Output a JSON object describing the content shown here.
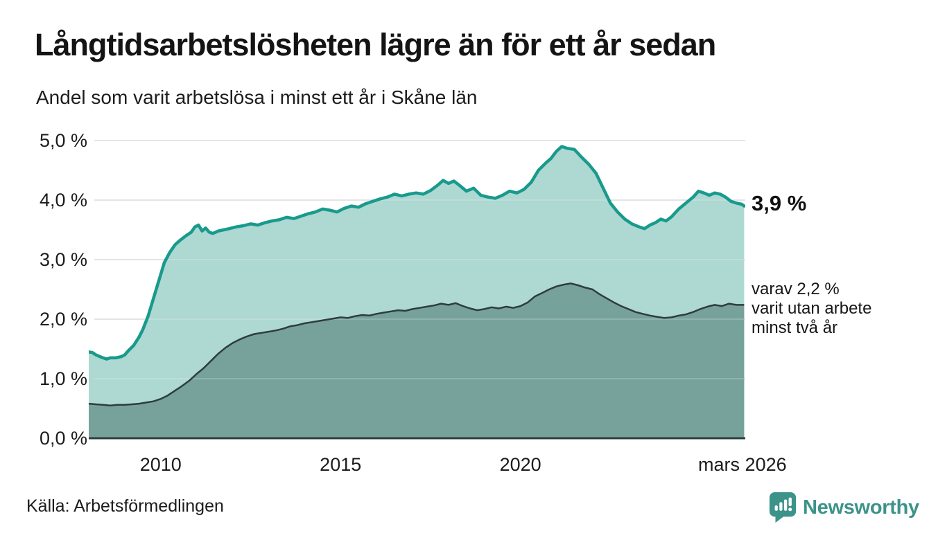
{
  "header": {
    "title": "Långtidsarbetslösheten lägre än för ett år sedan",
    "subtitle": "Andel som varit arbetslösa i minst ett år i Skåne län"
  },
  "chart_data": {
    "type": "area",
    "title": "Långtidsarbetslösheten lägre än för ett år sedan",
    "subtitle": "Andel som varit arbetslösa i minst ett år i Skåne län",
    "unit": "%",
    "xlim": [
      2008.0,
      2026.25
    ],
    "ylim": [
      0,
      5
    ],
    "grid": true,
    "y_ticks": [
      {
        "value": 5,
        "label": "5,0 %"
      },
      {
        "value": 4,
        "label": "4,0 %"
      },
      {
        "value": 3,
        "label": "3,0 %"
      },
      {
        "value": 2,
        "label": "2,0 %"
      },
      {
        "value": 1,
        "label": "1,0 %"
      },
      {
        "value": 0,
        "label": "0,0 %"
      }
    ],
    "x_ticks": [
      {
        "value": 2010,
        "label": "2010"
      },
      {
        "value": 2015,
        "label": "2015"
      },
      {
        "value": 2020,
        "label": "2020"
      },
      {
        "value": 2026.17,
        "label": "mars 2026"
      }
    ],
    "series": [
      {
        "name": "Andel arbetslösa minst ett år",
        "line_color": "#189a8c",
        "fill_color": "#aad6d0",
        "line_width": 4.5,
        "end_value": 3.9,
        "points": [
          [
            2008.0,
            1.45
          ],
          [
            2008.1,
            1.44
          ],
          [
            2008.2,
            1.4
          ],
          [
            2008.35,
            1.36
          ],
          [
            2008.5,
            1.33
          ],
          [
            2008.6,
            1.35
          ],
          [
            2008.75,
            1.35
          ],
          [
            2008.9,
            1.37
          ],
          [
            2009.0,
            1.4
          ],
          [
            2009.1,
            1.47
          ],
          [
            2009.25,
            1.56
          ],
          [
            2009.4,
            1.7
          ],
          [
            2009.5,
            1.82
          ],
          [
            2009.65,
            2.05
          ],
          [
            2009.8,
            2.35
          ],
          [
            2009.95,
            2.65
          ],
          [
            2010.1,
            2.95
          ],
          [
            2010.25,
            3.12
          ],
          [
            2010.4,
            3.25
          ],
          [
            2010.55,
            3.33
          ],
          [
            2010.7,
            3.4
          ],
          [
            2010.85,
            3.46
          ],
          [
            2010.95,
            3.55
          ],
          [
            2011.05,
            3.58
          ],
          [
            2011.15,
            3.48
          ],
          [
            2011.25,
            3.53
          ],
          [
            2011.35,
            3.46
          ],
          [
            2011.45,
            3.44
          ],
          [
            2011.6,
            3.48
          ],
          [
            2011.75,
            3.5
          ],
          [
            2011.9,
            3.52
          ],
          [
            2012.1,
            3.55
          ],
          [
            2012.3,
            3.57
          ],
          [
            2012.5,
            3.6
          ],
          [
            2012.7,
            3.58
          ],
          [
            2012.9,
            3.62
          ],
          [
            2013.1,
            3.65
          ],
          [
            2013.3,
            3.67
          ],
          [
            2013.5,
            3.71
          ],
          [
            2013.7,
            3.69
          ],
          [
            2013.9,
            3.73
          ],
          [
            2014.1,
            3.77
          ],
          [
            2014.3,
            3.8
          ],
          [
            2014.5,
            3.85
          ],
          [
            2014.7,
            3.83
          ],
          [
            2014.9,
            3.8
          ],
          [
            2015.1,
            3.86
          ],
          [
            2015.3,
            3.9
          ],
          [
            2015.5,
            3.88
          ],
          [
            2015.7,
            3.94
          ],
          [
            2015.9,
            3.98
          ],
          [
            2016.1,
            4.02
          ],
          [
            2016.3,
            4.05
          ],
          [
            2016.5,
            4.1
          ],
          [
            2016.7,
            4.07
          ],
          [
            2016.9,
            4.1
          ],
          [
            2017.1,
            4.12
          ],
          [
            2017.3,
            4.1
          ],
          [
            2017.5,
            4.16
          ],
          [
            2017.7,
            4.25
          ],
          [
            2017.85,
            4.33
          ],
          [
            2018.0,
            4.28
          ],
          [
            2018.15,
            4.32
          ],
          [
            2018.3,
            4.25
          ],
          [
            2018.5,
            4.15
          ],
          [
            2018.7,
            4.2
          ],
          [
            2018.9,
            4.08
          ],
          [
            2019.1,
            4.05
          ],
          [
            2019.3,
            4.03
          ],
          [
            2019.5,
            4.08
          ],
          [
            2019.7,
            4.15
          ],
          [
            2019.9,
            4.12
          ],
          [
            2020.1,
            4.18
          ],
          [
            2020.3,
            4.3
          ],
          [
            2020.5,
            4.5
          ],
          [
            2020.7,
            4.62
          ],
          [
            2020.85,
            4.7
          ],
          [
            2021.0,
            4.82
          ],
          [
            2021.15,
            4.9
          ],
          [
            2021.3,
            4.87
          ],
          [
            2021.5,
            4.85
          ],
          [
            2021.7,
            4.72
          ],
          [
            2021.9,
            4.6
          ],
          [
            2022.1,
            4.45
          ],
          [
            2022.3,
            4.2
          ],
          [
            2022.5,
            3.95
          ],
          [
            2022.7,
            3.8
          ],
          [
            2022.9,
            3.68
          ],
          [
            2023.1,
            3.6
          ],
          [
            2023.3,
            3.55
          ],
          [
            2023.45,
            3.52
          ],
          [
            2023.6,
            3.58
          ],
          [
            2023.75,
            3.62
          ],
          [
            2023.9,
            3.68
          ],
          [
            2024.05,
            3.65
          ],
          [
            2024.2,
            3.72
          ],
          [
            2024.4,
            3.85
          ],
          [
            2024.6,
            3.95
          ],
          [
            2024.8,
            4.05
          ],
          [
            2024.95,
            4.15
          ],
          [
            2025.1,
            4.12
          ],
          [
            2025.25,
            4.08
          ],
          [
            2025.4,
            4.12
          ],
          [
            2025.55,
            4.1
          ],
          [
            2025.7,
            4.05
          ],
          [
            2025.85,
            3.98
          ],
          [
            2026.0,
            3.95
          ],
          [
            2026.15,
            3.93
          ],
          [
            2026.22,
            3.9
          ]
        ]
      },
      {
        "name": "Varav utan arbete minst två år",
        "line_color": "#2e3d3b",
        "fill_color": "#77a29c",
        "line_width": 2.5,
        "end_value": 2.2,
        "points": [
          [
            2008.0,
            0.58
          ],
          [
            2008.2,
            0.57
          ],
          [
            2008.4,
            0.56
          ],
          [
            2008.6,
            0.55
          ],
          [
            2008.8,
            0.56
          ],
          [
            2009.0,
            0.56
          ],
          [
            2009.2,
            0.57
          ],
          [
            2009.4,
            0.58
          ],
          [
            2009.6,
            0.6
          ],
          [
            2009.8,
            0.62
          ],
          [
            2010.0,
            0.66
          ],
          [
            2010.2,
            0.72
          ],
          [
            2010.4,
            0.8
          ],
          [
            2010.6,
            0.88
          ],
          [
            2010.8,
            0.97
          ],
          [
            2011.0,
            1.08
          ],
          [
            2011.2,
            1.18
          ],
          [
            2011.4,
            1.3
          ],
          [
            2011.6,
            1.42
          ],
          [
            2011.8,
            1.52
          ],
          [
            2012.0,
            1.6
          ],
          [
            2012.2,
            1.66
          ],
          [
            2012.4,
            1.71
          ],
          [
            2012.6,
            1.75
          ],
          [
            2012.8,
            1.77
          ],
          [
            2013.0,
            1.79
          ],
          [
            2013.2,
            1.81
          ],
          [
            2013.4,
            1.84
          ],
          [
            2013.6,
            1.88
          ],
          [
            2013.8,
            1.9
          ],
          [
            2014.0,
            1.93
          ],
          [
            2014.2,
            1.95
          ],
          [
            2014.4,
            1.97
          ],
          [
            2014.6,
            1.99
          ],
          [
            2014.8,
            2.01
          ],
          [
            2015.0,
            2.03
          ],
          [
            2015.2,
            2.02
          ],
          [
            2015.4,
            2.05
          ],
          [
            2015.6,
            2.07
          ],
          [
            2015.8,
            2.06
          ],
          [
            2016.0,
            2.09
          ],
          [
            2016.2,
            2.11
          ],
          [
            2016.4,
            2.13
          ],
          [
            2016.6,
            2.15
          ],
          [
            2016.8,
            2.14
          ],
          [
            2017.0,
            2.17
          ],
          [
            2017.2,
            2.19
          ],
          [
            2017.4,
            2.21
          ],
          [
            2017.6,
            2.23
          ],
          [
            2017.8,
            2.26
          ],
          [
            2018.0,
            2.24
          ],
          [
            2018.2,
            2.27
          ],
          [
            2018.4,
            2.22
          ],
          [
            2018.6,
            2.18
          ],
          [
            2018.8,
            2.15
          ],
          [
            2019.0,
            2.17
          ],
          [
            2019.2,
            2.2
          ],
          [
            2019.4,
            2.18
          ],
          [
            2019.6,
            2.21
          ],
          [
            2019.8,
            2.19
          ],
          [
            2020.0,
            2.22
          ],
          [
            2020.2,
            2.28
          ],
          [
            2020.4,
            2.38
          ],
          [
            2020.6,
            2.44
          ],
          [
            2020.8,
            2.5
          ],
          [
            2021.0,
            2.55
          ],
          [
            2021.2,
            2.58
          ],
          [
            2021.4,
            2.6
          ],
          [
            2021.6,
            2.57
          ],
          [
            2021.8,
            2.53
          ],
          [
            2022.0,
            2.5
          ],
          [
            2022.2,
            2.42
          ],
          [
            2022.4,
            2.35
          ],
          [
            2022.6,
            2.28
          ],
          [
            2022.8,
            2.22
          ],
          [
            2023.0,
            2.17
          ],
          [
            2023.2,
            2.12
          ],
          [
            2023.4,
            2.09
          ],
          [
            2023.6,
            2.06
          ],
          [
            2023.8,
            2.04
          ],
          [
            2024.0,
            2.02
          ],
          [
            2024.2,
            2.03
          ],
          [
            2024.4,
            2.06
          ],
          [
            2024.6,
            2.08
          ],
          [
            2024.8,
            2.12
          ],
          [
            2025.0,
            2.17
          ],
          [
            2025.2,
            2.21
          ],
          [
            2025.4,
            2.24
          ],
          [
            2025.6,
            2.22
          ],
          [
            2025.8,
            2.26
          ],
          [
            2026.0,
            2.24
          ],
          [
            2026.22,
            2.24
          ]
        ]
      }
    ],
    "annotations": {
      "end_value_label": "3,9 %",
      "sub_line1": "varav 2,2 %",
      "sub_line2": "varit utan arbete",
      "sub_line3": "minst två år"
    },
    "legend_position": "none",
    "colors": {
      "gridline": "#dfdfe3",
      "baseline": "#2f3e3d",
      "text": "#1c1c1c"
    }
  },
  "footer": {
    "source": "Källa: Arbetsförmedlingen",
    "brand_name": "Newsworthy",
    "brand_color": "#3b938a"
  }
}
